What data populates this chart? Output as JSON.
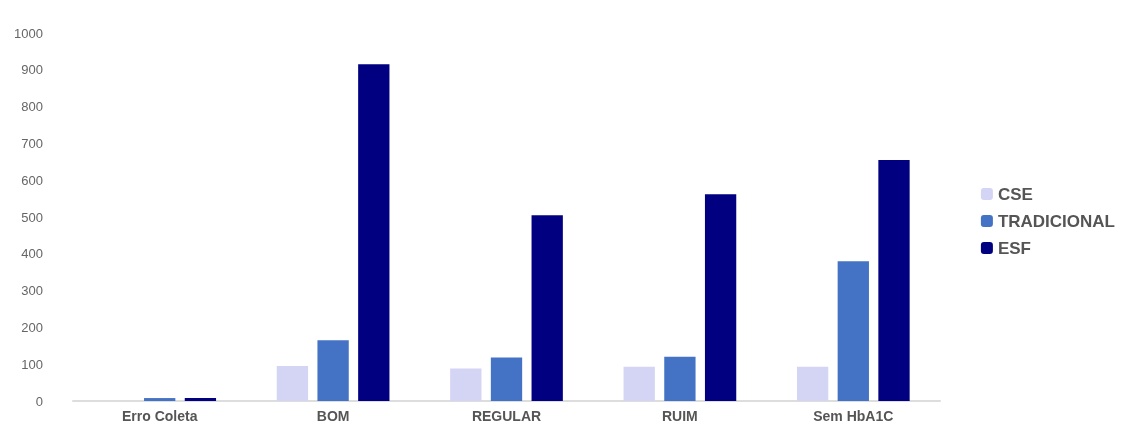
{
  "chart_data": {
    "type": "bar",
    "categories": [
      "Erro Coleta",
      "BOM",
      "REGULAR",
      "RUIM",
      "Sem HbA1C"
    ],
    "series": [
      {
        "name": "CSE",
        "color": "#d4d4f5",
        "values": [
          null,
          95,
          88,
          93,
          93
        ]
      },
      {
        "name": "TRADICIONAL",
        "color": "#4472c4",
        "values": [
          8,
          165,
          118,
          120,
          380
        ]
      },
      {
        "name": "ESF",
        "color": "#000080",
        "values": [
          8,
          915,
          505,
          562,
          655
        ]
      }
    ],
    "ylim": [
      0,
      1000
    ],
    "yticks": [
      0,
      100,
      200,
      300,
      400,
      500,
      600,
      700,
      800,
      900,
      1000
    ],
    "grid": false,
    "legend": "right"
  }
}
